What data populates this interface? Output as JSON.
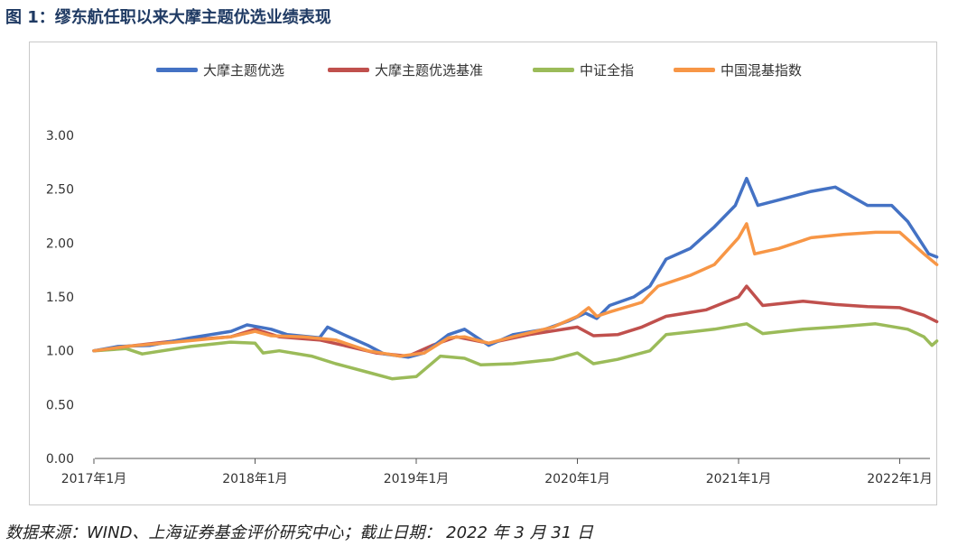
{
  "figure_title": "图 1：缪东航任职以来大摩主题优选业绩表现",
  "source_note": "数据来源：WIND、上海证券基金评价研究中心；截止日期： 2022 年 3 月 31 日",
  "colors": {
    "fund": "#4472c4",
    "benchmark": "#c0504d",
    "csi_all": "#9bbb59",
    "hybrid_index": "#f79646",
    "axis": "#555555"
  },
  "chart_data": {
    "type": "line",
    "ylim": [
      0,
      3
    ],
    "yticks": [
      "0.00",
      "0.50",
      "1.00",
      "1.50",
      "2.00",
      "2.50",
      "3.00"
    ],
    "xlim": [
      2017.0,
      2022.25
    ],
    "xticks": [
      {
        "x": 2017,
        "label": "2017年1月"
      },
      {
        "x": 2018,
        "label": "2018年1月"
      },
      {
        "x": 2019,
        "label": "2019年1月"
      },
      {
        "x": 2020,
        "label": "2020年1月"
      },
      {
        "x": 2021,
        "label": "2021年1月"
      },
      {
        "x": 2022,
        "label": "2022年1月"
      }
    ],
    "grid": false,
    "legend_position": "top",
    "series": [
      {
        "name": "大摩主题优选",
        "points": [
          [
            2017.0,
            1.0
          ],
          [
            2017.15,
            1.04
          ],
          [
            2017.35,
            1.05
          ],
          [
            2017.6,
            1.12
          ],
          [
            2017.85,
            1.18
          ],
          [
            2017.95,
            1.24
          ],
          [
            2018.1,
            1.2
          ],
          [
            2018.2,
            1.15
          ],
          [
            2018.4,
            1.12
          ],
          [
            2018.45,
            1.22
          ],
          [
            2018.55,
            1.15
          ],
          [
            2018.7,
            1.05
          ],
          [
            2018.8,
            0.97
          ],
          [
            2018.95,
            0.94
          ],
          [
            2019.05,
            0.98
          ],
          [
            2019.2,
            1.15
          ],
          [
            2019.3,
            1.2
          ],
          [
            2019.4,
            1.1
          ],
          [
            2019.45,
            1.05
          ],
          [
            2019.6,
            1.15
          ],
          [
            2019.8,
            1.2
          ],
          [
            2019.95,
            1.28
          ],
          [
            2020.05,
            1.35
          ],
          [
            2020.12,
            1.3
          ],
          [
            2020.2,
            1.42
          ],
          [
            2020.35,
            1.5
          ],
          [
            2020.45,
            1.6
          ],
          [
            2020.55,
            1.85
          ],
          [
            2020.7,
            1.95
          ],
          [
            2020.85,
            2.15
          ],
          [
            2020.98,
            2.35
          ],
          [
            2021.05,
            2.6
          ],
          [
            2021.12,
            2.35
          ],
          [
            2021.25,
            2.4
          ],
          [
            2021.45,
            2.48
          ],
          [
            2021.6,
            2.52
          ],
          [
            2021.8,
            2.35
          ],
          [
            2021.95,
            2.35
          ],
          [
            2022.05,
            2.2
          ],
          [
            2022.18,
            1.9
          ],
          [
            2022.23,
            1.87
          ]
        ]
      },
      {
        "name": "大摩主题优选基准",
        "points": [
          [
            2017.0,
            1.0
          ],
          [
            2017.2,
            1.04
          ],
          [
            2017.5,
            1.09
          ],
          [
            2017.85,
            1.13
          ],
          [
            2018.0,
            1.2
          ],
          [
            2018.15,
            1.13
          ],
          [
            2018.4,
            1.1
          ],
          [
            2018.55,
            1.05
          ],
          [
            2018.75,
            0.98
          ],
          [
            2018.95,
            0.95
          ],
          [
            2019.1,
            1.05
          ],
          [
            2019.25,
            1.13
          ],
          [
            2019.45,
            1.07
          ],
          [
            2019.7,
            1.15
          ],
          [
            2020.0,
            1.22
          ],
          [
            2020.1,
            1.14
          ],
          [
            2020.25,
            1.15
          ],
          [
            2020.4,
            1.22
          ],
          [
            2020.55,
            1.32
          ],
          [
            2020.8,
            1.38
          ],
          [
            2021.0,
            1.5
          ],
          [
            2021.05,
            1.6
          ],
          [
            2021.15,
            1.42
          ],
          [
            2021.4,
            1.46
          ],
          [
            2021.6,
            1.43
          ],
          [
            2021.8,
            1.41
          ],
          [
            2022.0,
            1.4
          ],
          [
            2022.15,
            1.33
          ],
          [
            2022.23,
            1.27
          ]
        ]
      },
      {
        "name": "中证全指",
        "points": [
          [
            2017.0,
            1.0
          ],
          [
            2017.2,
            1.02
          ],
          [
            2017.3,
            0.97
          ],
          [
            2017.6,
            1.04
          ],
          [
            2017.85,
            1.08
          ],
          [
            2018.0,
            1.07
          ],
          [
            2018.05,
            0.98
          ],
          [
            2018.15,
            1.0
          ],
          [
            2018.35,
            0.95
          ],
          [
            2018.5,
            0.88
          ],
          [
            2018.7,
            0.8
          ],
          [
            2018.85,
            0.74
          ],
          [
            2019.0,
            0.76
          ],
          [
            2019.15,
            0.95
          ],
          [
            2019.3,
            0.93
          ],
          [
            2019.4,
            0.87
          ],
          [
            2019.6,
            0.88
          ],
          [
            2019.85,
            0.92
          ],
          [
            2020.0,
            0.98
          ],
          [
            2020.1,
            0.88
          ],
          [
            2020.25,
            0.92
          ],
          [
            2020.45,
            1.0
          ],
          [
            2020.55,
            1.15
          ],
          [
            2020.85,
            1.2
          ],
          [
            2021.05,
            1.25
          ],
          [
            2021.15,
            1.16
          ],
          [
            2021.4,
            1.2
          ],
          [
            2021.6,
            1.22
          ],
          [
            2021.85,
            1.25
          ],
          [
            2022.05,
            1.2
          ],
          [
            2022.15,
            1.13
          ],
          [
            2022.2,
            1.05
          ],
          [
            2022.23,
            1.09
          ]
        ]
      },
      {
        "name": "中国混基指数",
        "points": [
          [
            2017.0,
            1.0
          ],
          [
            2017.2,
            1.04
          ],
          [
            2017.5,
            1.08
          ],
          [
            2017.85,
            1.13
          ],
          [
            2018.0,
            1.18
          ],
          [
            2018.1,
            1.14
          ],
          [
            2018.3,
            1.13
          ],
          [
            2018.5,
            1.1
          ],
          [
            2018.7,
            1.0
          ],
          [
            2018.9,
            0.95
          ],
          [
            2019.05,
            0.98
          ],
          [
            2019.2,
            1.12
          ],
          [
            2019.3,
            1.13
          ],
          [
            2019.45,
            1.07
          ],
          [
            2019.6,
            1.13
          ],
          [
            2019.85,
            1.22
          ],
          [
            2020.0,
            1.32
          ],
          [
            2020.07,
            1.4
          ],
          [
            2020.12,
            1.32
          ],
          [
            2020.2,
            1.36
          ],
          [
            2020.4,
            1.45
          ],
          [
            2020.5,
            1.6
          ],
          [
            2020.7,
            1.7
          ],
          [
            2020.85,
            1.8
          ],
          [
            2021.0,
            2.05
          ],
          [
            2021.05,
            2.18
          ],
          [
            2021.1,
            1.9
          ],
          [
            2021.25,
            1.95
          ],
          [
            2021.45,
            2.05
          ],
          [
            2021.65,
            2.08
          ],
          [
            2021.85,
            2.1
          ],
          [
            2022.0,
            2.1
          ],
          [
            2022.15,
            1.9
          ],
          [
            2022.23,
            1.8
          ]
        ]
      }
    ]
  }
}
